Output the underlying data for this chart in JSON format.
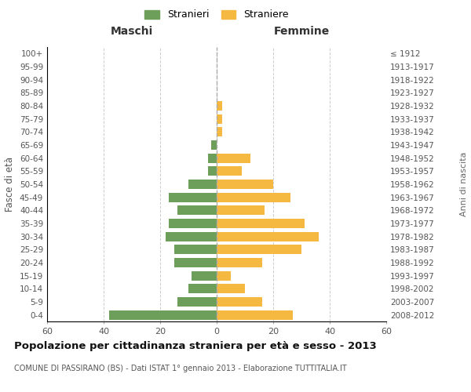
{
  "age_groups_bottom_to_top": [
    "0-4",
    "5-9",
    "10-14",
    "15-19",
    "20-24",
    "25-29",
    "30-34",
    "35-39",
    "40-44",
    "45-49",
    "50-54",
    "55-59",
    "60-64",
    "65-69",
    "70-74",
    "75-79",
    "80-84",
    "85-89",
    "90-94",
    "95-99",
    "100+"
  ],
  "birth_years_bottom_to_top": [
    "2008-2012",
    "2003-2007",
    "1998-2002",
    "1993-1997",
    "1988-1992",
    "1983-1987",
    "1978-1982",
    "1973-1977",
    "1968-1972",
    "1963-1967",
    "1958-1962",
    "1953-1957",
    "1948-1952",
    "1943-1947",
    "1938-1942",
    "1933-1937",
    "1928-1932",
    "1923-1927",
    "1918-1922",
    "1913-1917",
    "≤ 1912"
  ],
  "maschi_bottom_to_top": [
    38,
    14,
    10,
    9,
    15,
    15,
    18,
    17,
    14,
    17,
    10,
    3,
    3,
    2,
    0,
    0,
    0,
    0,
    0,
    0,
    0
  ],
  "femmine_bottom_to_top": [
    27,
    16,
    10,
    5,
    16,
    30,
    36,
    31,
    17,
    26,
    20,
    9,
    12,
    0,
    2,
    2,
    2,
    0,
    0,
    0,
    0
  ],
  "maschi_color": "#6d9e5a",
  "femmine_color": "#f5b942",
  "background_color": "#ffffff",
  "grid_color": "#cccccc",
  "title": "Popolazione per cittadinanza straniera per età e sesso - 2013",
  "subtitle": "COMUNE DI PASSIRANO (BS) - Dati ISTAT 1° gennaio 2013 - Elaborazione TUTTITALIA.IT",
  "ylabel_left": "Fasce di età",
  "ylabel_right": "Anni di nascita",
  "xlabel_left": "Maschi",
  "xlabel_right": "Femmine",
  "legend_maschi": "Stranieri",
  "legend_femmine": "Straniere",
  "xlim": 60
}
